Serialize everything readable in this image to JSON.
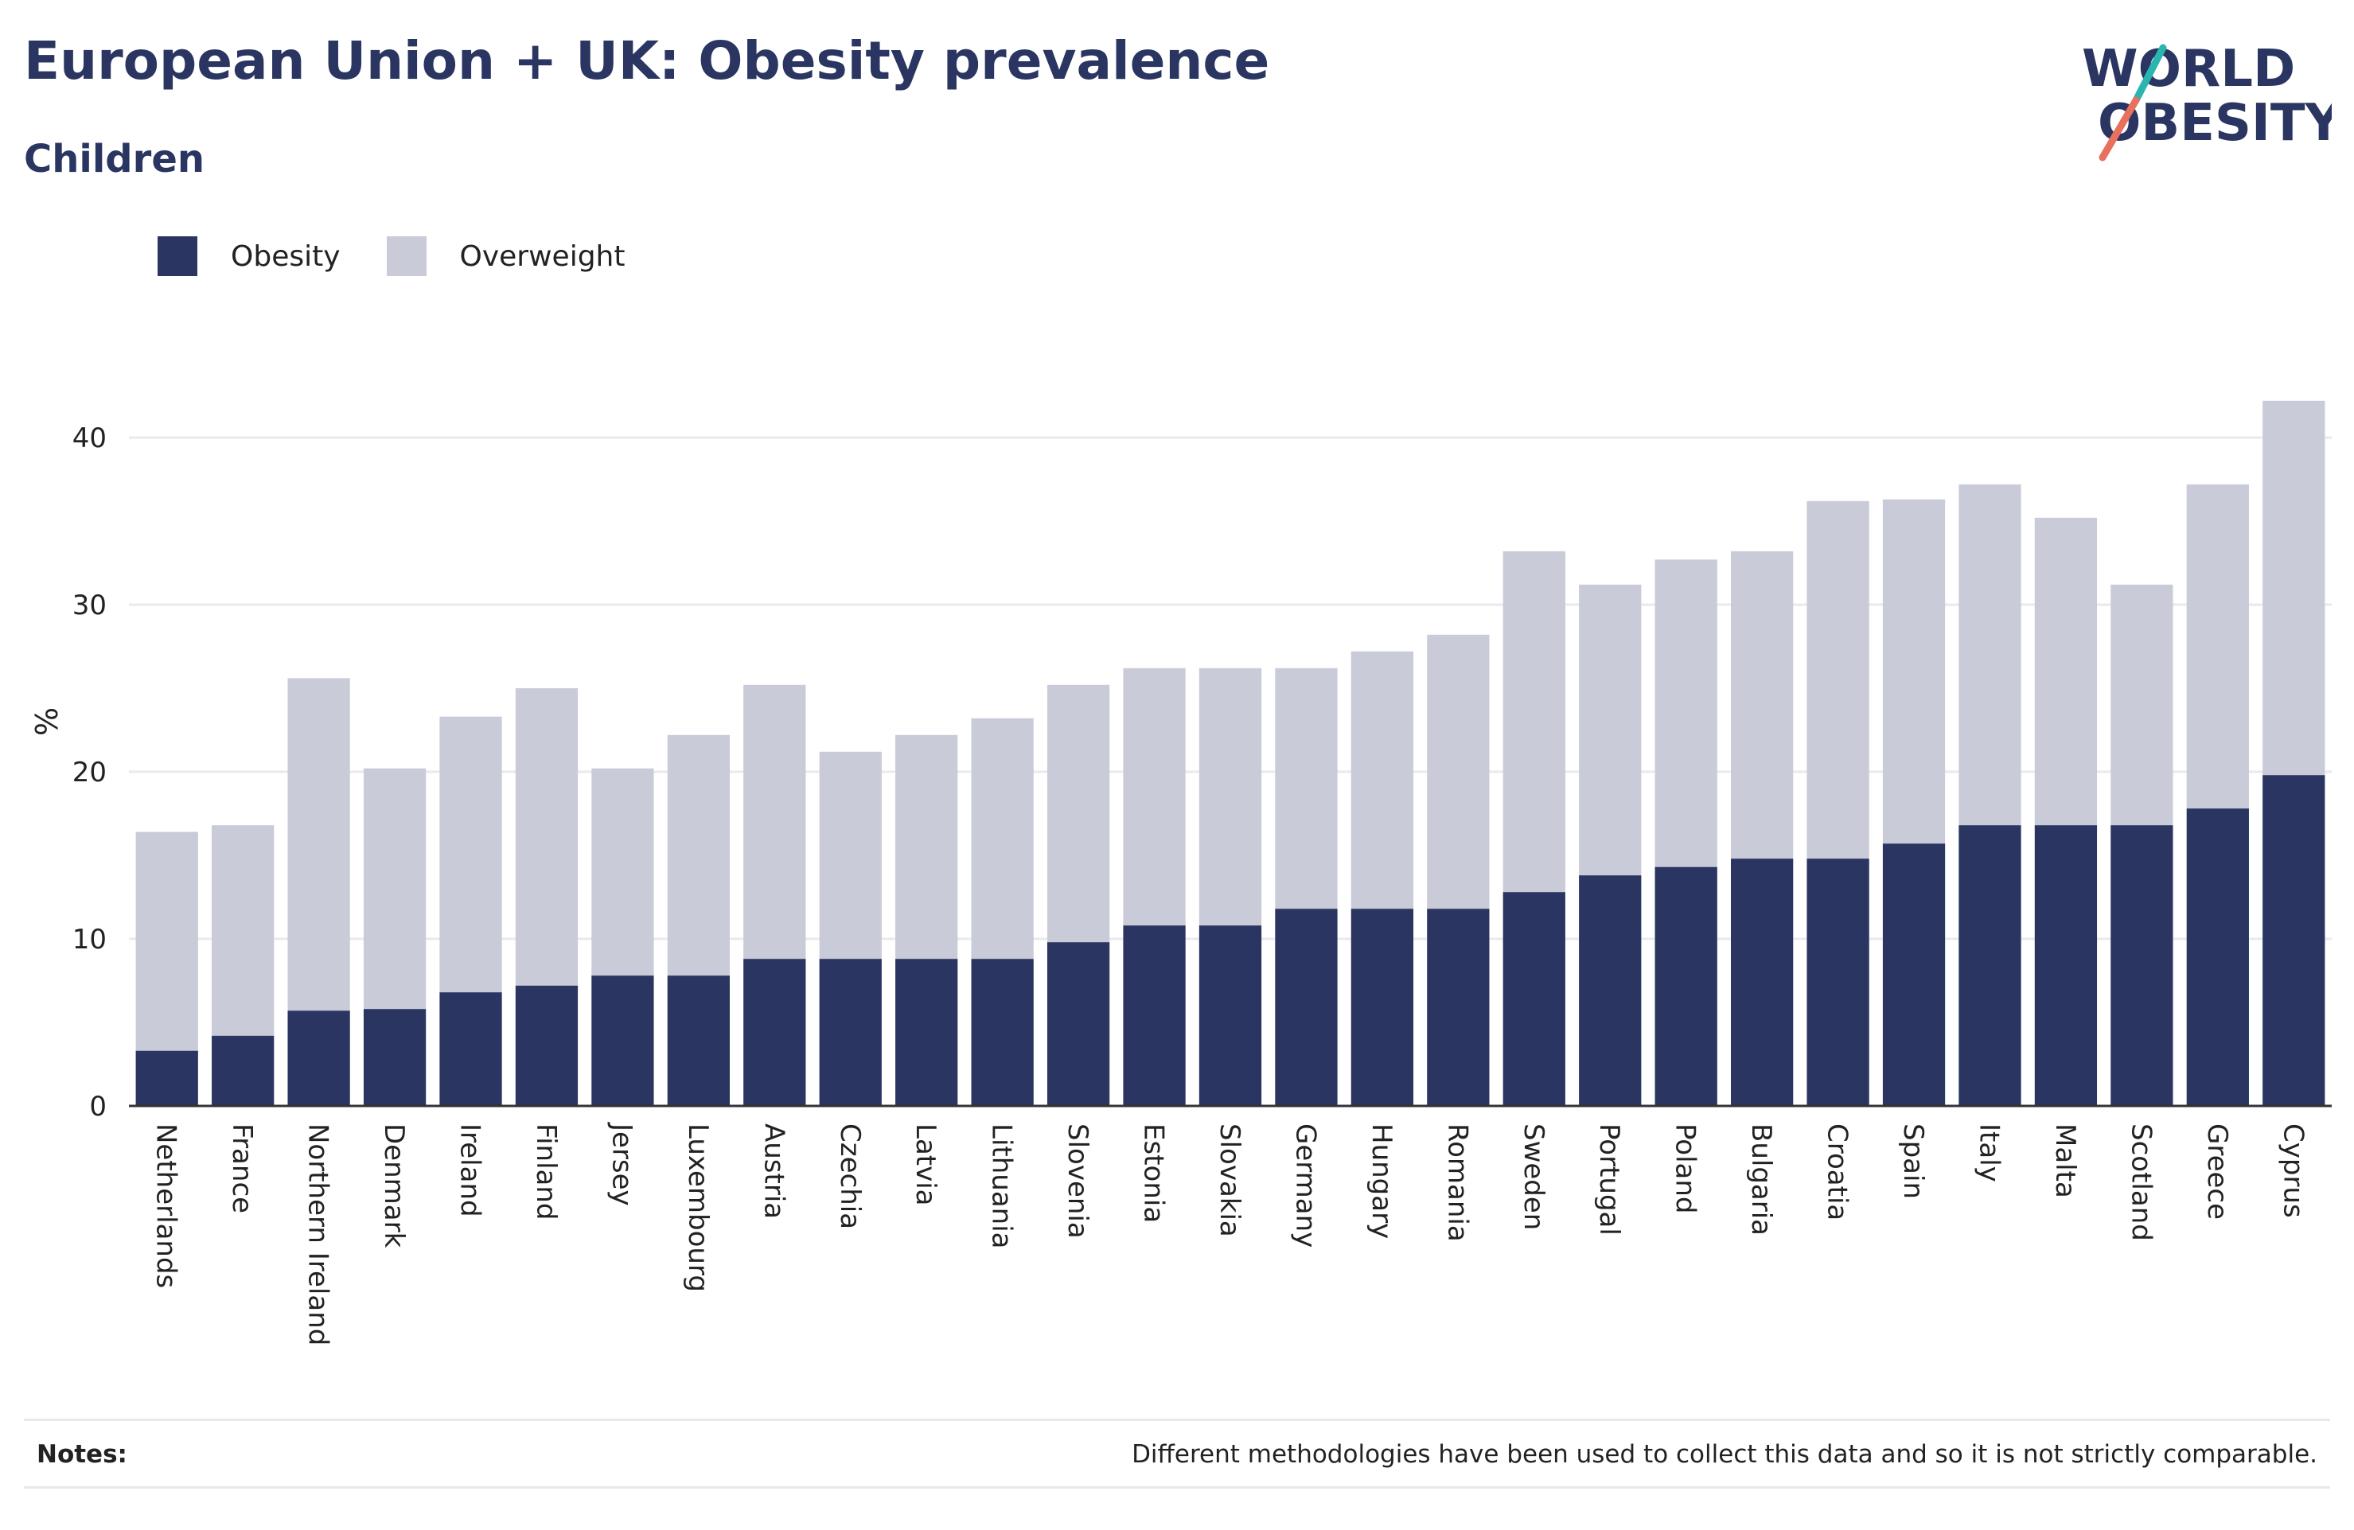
{
  "header": {
    "title": "European Union + UK: Obesity prevalence",
    "subtitle": "Children"
  },
  "logo": {
    "line1": "WORLD",
    "line2": "OBESITY"
  },
  "notes": {
    "label": "Notes:",
    "text": "Different methodologies have been used to collect this data and so it is not strictly comparable."
  },
  "colors": {
    "obesity": "#2a3561",
    "overweight": "#c9cbd8",
    "logo_teal": "#2bb5b0",
    "logo_coral": "#e8705f",
    "grid": "#e9e9ee",
    "axis": "#333333"
  },
  "chart_data": {
    "type": "bar",
    "stacked": true,
    "title": "European Union + UK: Obesity prevalence",
    "subtitle": "Children",
    "ylabel": "%",
    "xlabel": "",
    "ylim": [
      0,
      43
    ],
    "yticks": [
      0,
      10,
      20,
      30,
      40
    ],
    "grid": true,
    "legend_position": "top-left",
    "categories": [
      "Netherlands",
      "France",
      "Northern Ireland",
      "Denmark",
      "Ireland",
      "Finland",
      "Jersey",
      "Luxembourg",
      "Austria",
      "Czechia",
      "Latvia",
      "Lithuania",
      "Slovenia",
      "Estonia",
      "Slovakia",
      "Germany",
      "Hungary",
      "Romania",
      "Sweden",
      "Portugal",
      "Poland",
      "Bulgaria",
      "Croatia",
      "Spain",
      "Italy",
      "Malta",
      "Scotland",
      "Greece",
      "Cyprus"
    ],
    "series": [
      {
        "name": "Obesity",
        "values": [
          3.3,
          4.2,
          5.7,
          5.8,
          6.8,
          7.2,
          7.8,
          7.8,
          8.8,
          8.8,
          8.8,
          8.8,
          9.8,
          10.8,
          10.8,
          11.8,
          11.8,
          11.8,
          12.8,
          13.8,
          14.3,
          14.8,
          14.8,
          15.7,
          16.8,
          16.8,
          16.8,
          17.8,
          19.8
        ]
      },
      {
        "name": "Overweight",
        "values": [
          13.1,
          12.6,
          19.9,
          14.4,
          16.5,
          17.8,
          12.4,
          14.4,
          16.4,
          12.4,
          13.4,
          14.4,
          15.4,
          15.4,
          15.4,
          14.4,
          15.4,
          16.4,
          20.4,
          17.4,
          18.4,
          18.4,
          21.4,
          20.6,
          20.4,
          18.4,
          14.4,
          19.4,
          22.4
        ]
      }
    ]
  }
}
